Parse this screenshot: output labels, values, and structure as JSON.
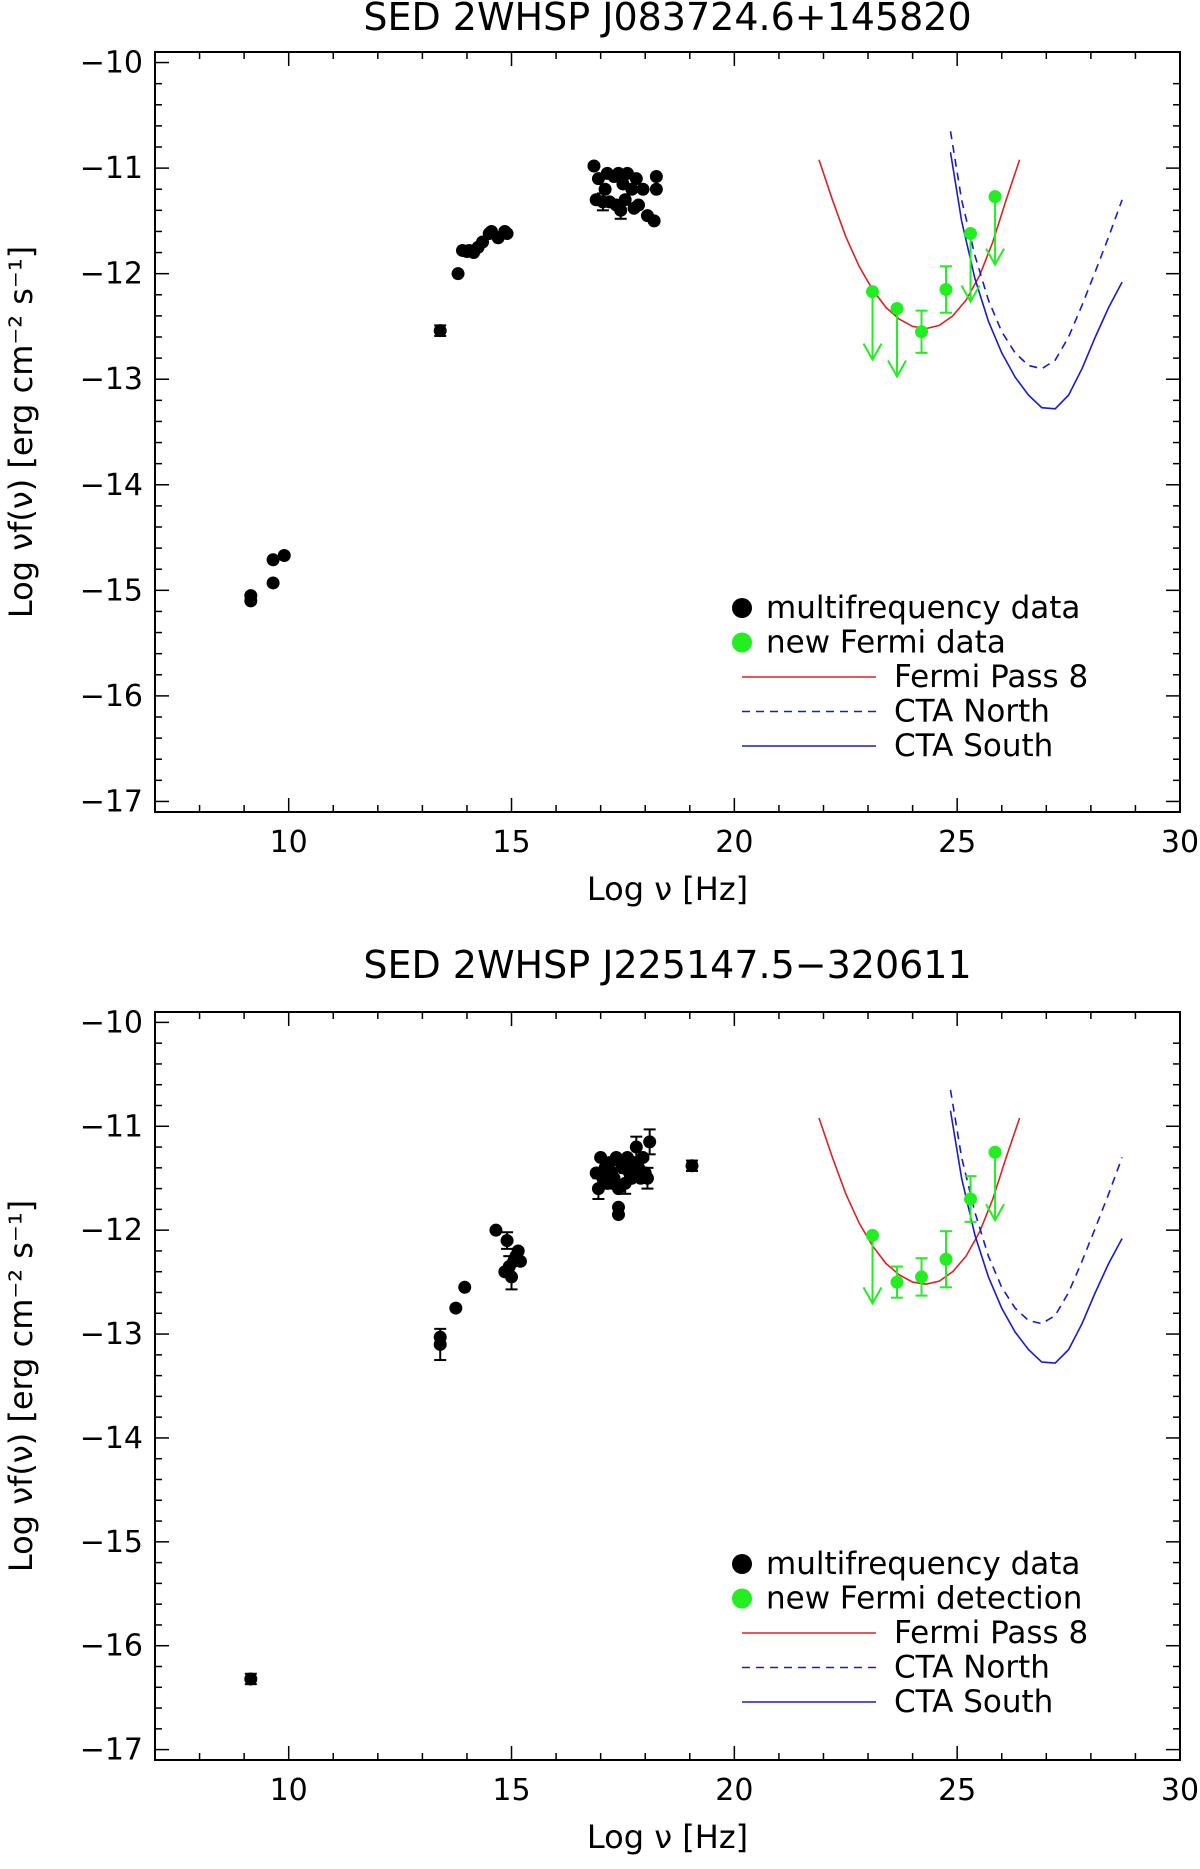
{
  "colors": {
    "multifrequency": "#000000",
    "fermi_data": "#22ee22",
    "fermi_pass8": "#dd2222",
    "cta": "#1a1ad0"
  },
  "chart_data": [
    {
      "type": "scatter",
      "title": "SED 2WHSP J083724.6+145820",
      "xlabel": "Log ν [Hz]",
      "ylabel": "Log νf(ν) [erg cm⁻² s⁻¹]",
      "xlim": [
        7,
        30
      ],
      "ylim": [
        -17.1,
        -9.9
      ],
      "xticks": [
        10,
        15,
        20,
        25,
        30
      ],
      "xtick_labels": [
        "10",
        "15",
        "20",
        "25",
        "30"
      ],
      "yticks": [
        -10,
        -11,
        -12,
        -13,
        -14,
        -15,
        -16,
        -17
      ],
      "ytick_labels": [
        "−10",
        "−11",
        "−12",
        "−13",
        "−14",
        "−15",
        "−16",
        "−17"
      ],
      "legend": {
        "position": "bottom-right",
        "entries": [
          "multifrequency data",
          "new Fermi data",
          "Fermi Pass 8",
          "CTA North",
          "CTA South"
        ]
      },
      "series": [
        {
          "name": "multifrequency data",
          "kind": "points",
          "color": "#000000",
          "x": [
            9.15,
            9.15,
            9.65,
            9.65,
            9.9,
            13.4,
            13.8,
            13.9,
            14.0,
            14.05,
            14.15,
            14.25,
            14.35,
            14.5,
            14.55,
            14.7,
            14.85,
            14.9,
            16.85,
            16.9,
            16.95,
            17.05,
            17.1,
            17.15,
            17.2,
            17.3,
            17.35,
            17.4,
            17.45,
            17.5,
            17.55,
            17.6,
            17.7,
            17.75,
            17.8,
            17.85,
            17.95,
            18.05,
            18.2,
            18.25,
            18.25
          ],
          "y": [
            -15.05,
            -15.1,
            -14.93,
            -14.71,
            -14.67,
            -12.54,
            -12.0,
            -11.78,
            -11.79,
            -11.78,
            -11.8,
            -11.75,
            -11.7,
            -11.62,
            -11.6,
            -11.66,
            -11.6,
            -11.62,
            -10.98,
            -11.3,
            -11.1,
            -11.32,
            -11.2,
            -11.05,
            -11.32,
            -11.08,
            -11.35,
            -11.05,
            -11.4,
            -11.15,
            -11.3,
            -11.05,
            -11.2,
            -11.38,
            -11.1,
            -11.35,
            -11.2,
            -11.45,
            -11.5,
            -11.08,
            -11.2
          ],
          "yerr": [
            0,
            0,
            0,
            0,
            0,
            0.05,
            0,
            0,
            0,
            0,
            0,
            0,
            0,
            0,
            0,
            0,
            0,
            0,
            0,
            0,
            0,
            0.08,
            0,
            0,
            0,
            0,
            0,
            0,
            0.08,
            0,
            0,
            0,
            0,
            0,
            0,
            0,
            0,
            0,
            0,
            0,
            0
          ]
        },
        {
          "name": "new Fermi data",
          "kind": "points",
          "color": "#22ee22",
          "x": [
            23.1,
            23.65,
            24.2,
            24.75,
            25.3,
            25.85
          ],
          "y": [
            -12.17,
            -12.33,
            -12.55,
            -12.15,
            -11.62,
            -11.27
          ],
          "yerr": [
            0,
            0,
            0.2,
            0.22,
            0,
            0
          ],
          "upper_limit": [
            true,
            true,
            false,
            false,
            true,
            true
          ]
        },
        {
          "name": "Fermi Pass 8",
          "kind": "line",
          "style": "solid",
          "color": "#dd2222",
          "x": [
            21.9,
            22.2,
            22.5,
            22.8,
            23.1,
            23.4,
            23.7,
            24.0,
            24.3,
            24.6,
            24.9,
            25.2,
            25.5,
            25.8,
            26.1,
            26.4
          ],
          "y": [
            -10.92,
            -11.3,
            -11.65,
            -11.93,
            -12.15,
            -12.32,
            -12.43,
            -12.5,
            -12.52,
            -12.49,
            -12.4,
            -12.25,
            -12.02,
            -11.7,
            -11.3,
            -10.92
          ]
        },
        {
          "name": "CTA North",
          "kind": "line",
          "style": "dashed",
          "color": "#1a1ad0",
          "x": [
            24.85,
            25.1,
            25.4,
            25.7,
            26.0,
            26.3,
            26.6,
            26.9,
            27.2,
            27.5,
            27.8,
            28.1,
            28.4,
            28.7
          ],
          "y": [
            -10.65,
            -11.3,
            -11.83,
            -12.25,
            -12.55,
            -12.75,
            -12.87,
            -12.9,
            -12.82,
            -12.6,
            -12.3,
            -11.98,
            -11.65,
            -11.3
          ]
        },
        {
          "name": "CTA South",
          "kind": "line",
          "style": "solid",
          "color": "#1a1ad0",
          "x": [
            24.85,
            25.1,
            25.4,
            25.7,
            26.0,
            26.3,
            26.6,
            26.9,
            27.2,
            27.5,
            27.8,
            28.1,
            28.4,
            28.7
          ],
          "y": [
            -10.85,
            -11.5,
            -12.05,
            -12.45,
            -12.75,
            -12.98,
            -13.15,
            -13.27,
            -13.28,
            -13.15,
            -12.9,
            -12.6,
            -12.32,
            -12.08
          ]
        }
      ]
    },
    {
      "type": "scatter",
      "title": "SED 2WHSP J225147.5−320611",
      "xlabel": "Log ν [Hz]",
      "ylabel": "Log νf(ν) [erg cm⁻² s⁻¹]",
      "xlim": [
        7,
        30
      ],
      "ylim": [
        -17.1,
        -9.9
      ],
      "xticks": [
        10,
        15,
        20,
        25,
        30
      ],
      "xtick_labels": [
        "10",
        "15",
        "20",
        "25",
        "30"
      ],
      "yticks": [
        -10,
        -11,
        -12,
        -13,
        -14,
        -15,
        -16,
        -17
      ],
      "ytick_labels": [
        "−10",
        "−11",
        "−12",
        "−13",
        "−14",
        "−15",
        "−16",
        "−17"
      ],
      "legend": {
        "position": "bottom-right",
        "entries": [
          "multifrequency data",
          "new Fermi detection",
          "Fermi Pass 8",
          "CTA North",
          "CTA South"
        ]
      },
      "series": [
        {
          "name": "multifrequency data",
          "kind": "points",
          "color": "#000000",
          "x": [
            9.15,
            13.4,
            13.4,
            13.75,
            13.95,
            14.65,
            14.85,
            14.9,
            14.95,
            15.0,
            15.05,
            15.1,
            15.15,
            15.2,
            16.9,
            16.95,
            17.0,
            17.05,
            17.1,
            17.15,
            17.2,
            17.25,
            17.3,
            17.35,
            17.4,
            17.45,
            17.5,
            17.55,
            17.6,
            17.65,
            17.7,
            17.75,
            17.8,
            17.85,
            17.9,
            17.95,
            18.0,
            18.05,
            18.1,
            17.4,
            17.4,
            19.05
          ],
          "y": [
            -16.32,
            -13.03,
            -13.1,
            -12.75,
            -12.55,
            -12.0,
            -12.4,
            -12.1,
            -12.35,
            -12.45,
            -12.3,
            -12.25,
            -12.2,
            -12.3,
            -11.45,
            -11.6,
            -11.3,
            -11.5,
            -11.4,
            -11.55,
            -11.35,
            -11.45,
            -11.5,
            -11.3,
            -11.6,
            -11.35,
            -11.4,
            -11.55,
            -11.3,
            -11.45,
            -11.5,
            -11.35,
            -11.2,
            -11.4,
            -11.5,
            -11.3,
            -11.45,
            -11.5,
            -11.15,
            -11.78,
            -11.85,
            -11.38
          ],
          "yerr": [
            0.05,
            0,
            0.15,
            0,
            0,
            0,
            0,
            0.08,
            0.1,
            0.12,
            0,
            0,
            0,
            0,
            0,
            0.1,
            0,
            0,
            0,
            0,
            0,
            0,
            0.1,
            0,
            0,
            0,
            0,
            0.1,
            0,
            0,
            0,
            0,
            0.1,
            0,
            0,
            0,
            0,
            0.1,
            0.12,
            0,
            0,
            0.05
          ]
        },
        {
          "name": "new Fermi detection",
          "kind": "points",
          "color": "#22ee22",
          "x": [
            23.1,
            23.65,
            24.2,
            24.75,
            25.3,
            25.85
          ],
          "y": [
            -12.05,
            -12.5,
            -12.45,
            -12.28,
            -11.7,
            -11.25
          ],
          "yerr": [
            0,
            0.15,
            0.18,
            0.27,
            0.22,
            0
          ],
          "upper_limit": [
            true,
            false,
            false,
            false,
            false,
            true
          ]
        },
        {
          "name": "Fermi Pass 8",
          "kind": "line",
          "style": "solid",
          "color": "#dd2222",
          "x": [
            21.9,
            22.2,
            22.5,
            22.8,
            23.1,
            23.4,
            23.7,
            24.0,
            24.3,
            24.6,
            24.9,
            25.2,
            25.5,
            25.8,
            26.1,
            26.4
          ],
          "y": [
            -10.92,
            -11.3,
            -11.65,
            -11.93,
            -12.15,
            -12.32,
            -12.43,
            -12.5,
            -12.52,
            -12.49,
            -12.4,
            -12.25,
            -12.02,
            -11.7,
            -11.3,
            -10.92
          ]
        },
        {
          "name": "CTA North",
          "kind": "line",
          "style": "dashed",
          "color": "#1a1ad0",
          "x": [
            24.85,
            25.1,
            25.4,
            25.7,
            26.0,
            26.3,
            26.6,
            26.9,
            27.2,
            27.5,
            27.8,
            28.1,
            28.4,
            28.7
          ],
          "y": [
            -10.65,
            -11.3,
            -11.83,
            -12.25,
            -12.55,
            -12.75,
            -12.87,
            -12.9,
            -12.82,
            -12.6,
            -12.3,
            -11.98,
            -11.65,
            -11.3
          ]
        },
        {
          "name": "CTA South",
          "kind": "line",
          "style": "solid",
          "color": "#1a1ad0",
          "x": [
            24.85,
            25.1,
            25.4,
            25.7,
            26.0,
            26.3,
            26.6,
            26.9,
            27.2,
            27.5,
            27.8,
            28.1,
            28.4,
            28.7
          ],
          "y": [
            -10.85,
            -11.5,
            -12.05,
            -12.45,
            -12.75,
            -12.98,
            -13.15,
            -13.27,
            -13.28,
            -13.15,
            -12.9,
            -12.6,
            -12.32,
            -12.08
          ]
        }
      ]
    }
  ]
}
